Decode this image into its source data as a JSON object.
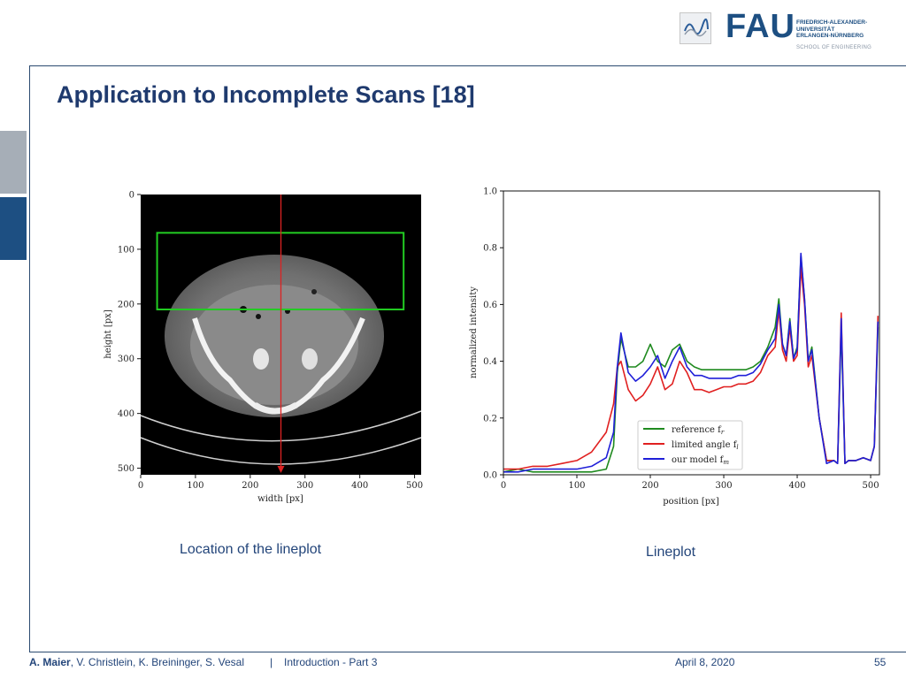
{
  "header": {
    "logo_text": "FAU",
    "university_lines": [
      "FRIEDRICH-ALEXANDER-",
      "UNIVERSITÄT",
      "ERLANGEN-NÜRNBERG"
    ],
    "school": "SCHOOL OF ENGINEERING"
  },
  "slide": {
    "title": "Application to Incomplete Scans [18]",
    "caption_left": "Location of the lineplot",
    "caption_right": "Lineplot"
  },
  "footer": {
    "author_main": "A. Maier",
    "authors_rest": ", V. Christlein, K. Breininger, S. Vesal",
    "separator": "|",
    "lecture": "Introduction - Part 3",
    "date": "April 8, 2020",
    "page": "55"
  },
  "colors": {
    "accent": "#1d4f82",
    "reference": "#1f8a1f",
    "limited": "#e02020",
    "model": "#1f1fd8",
    "box": "#22cc22",
    "line_marker": "#dd2222"
  },
  "chart_data": [
    {
      "type": "image",
      "xlabel": "width [px]",
      "ylabel": "height [px]",
      "xlim": [
        0,
        512
      ],
      "ylim": [
        512,
        0
      ],
      "xticks": [
        0,
        100,
        200,
        300,
        400,
        500
      ],
      "yticks": [
        0,
        100,
        200,
        300,
        400,
        500
      ],
      "annotations": [
        {
          "kind": "rectangle",
          "x0": 30,
          "y0": 70,
          "x1": 480,
          "y1": 210,
          "color": "green"
        },
        {
          "kind": "arrow",
          "x": 256,
          "y0": 0,
          "y1": 512,
          "color": "red"
        }
      ]
    },
    {
      "type": "line",
      "xlabel": "position [px]",
      "ylabel": "normalized intensity",
      "xlim": [
        0,
        512
      ],
      "ylim": [
        0,
        1.0
      ],
      "xticks": [
        0,
        100,
        200,
        300,
        400,
        500
      ],
      "yticks": [
        "0.0",
        "0.2",
        "0.4",
        "0.6",
        "0.8",
        "1.0"
      ],
      "legend_position": "lower-center",
      "x": [
        0,
        20,
        40,
        60,
        80,
        100,
        120,
        140,
        150,
        155,
        160,
        170,
        180,
        190,
        200,
        210,
        220,
        230,
        240,
        250,
        260,
        270,
        280,
        290,
        300,
        310,
        320,
        330,
        340,
        350,
        360,
        370,
        375,
        380,
        385,
        390,
        395,
        400,
        405,
        410,
        415,
        420,
        430,
        440,
        450,
        455,
        460,
        465,
        470,
        480,
        490,
        500,
        505,
        510
      ],
      "series": [
        {
          "name": "reference",
          "legend_label": "reference f",
          "legend_sub": "r",
          "color": "#1f8a1f",
          "values": [
            0.01,
            0.02,
            0.01,
            0.01,
            0.01,
            0.01,
            0.01,
            0.02,
            0.1,
            0.36,
            0.48,
            0.38,
            0.38,
            0.4,
            0.46,
            0.4,
            0.38,
            0.44,
            0.46,
            0.4,
            0.38,
            0.37,
            0.37,
            0.37,
            0.37,
            0.37,
            0.37,
            0.37,
            0.38,
            0.4,
            0.45,
            0.52,
            0.62,
            0.46,
            0.42,
            0.55,
            0.41,
            0.45,
            0.77,
            0.62,
            0.4,
            0.45,
            0.2,
            0.05,
            0.05,
            0.04,
            0.52,
            0.04,
            0.05,
            0.05,
            0.06,
            0.05,
            0.1,
            0.52
          ]
        },
        {
          "name": "limited angle",
          "legend_label": "limited angle f",
          "legend_sub": "l",
          "color": "#e02020",
          "values": [
            0.02,
            0.02,
            0.03,
            0.03,
            0.04,
            0.05,
            0.08,
            0.15,
            0.25,
            0.38,
            0.4,
            0.3,
            0.26,
            0.28,
            0.32,
            0.38,
            0.3,
            0.32,
            0.4,
            0.36,
            0.3,
            0.3,
            0.29,
            0.3,
            0.31,
            0.31,
            0.32,
            0.32,
            0.33,
            0.36,
            0.42,
            0.45,
            0.58,
            0.44,
            0.4,
            0.52,
            0.4,
            0.42,
            0.73,
            0.6,
            0.38,
            0.42,
            0.2,
            0.05,
            0.05,
            0.04,
            0.57,
            0.04,
            0.05,
            0.05,
            0.06,
            0.05,
            0.1,
            0.56
          ]
        },
        {
          "name": "our model",
          "legend_label": "our model f",
          "legend_sub": "m",
          "color": "#1f1fd8",
          "values": [
            0.01,
            0.01,
            0.02,
            0.02,
            0.02,
            0.02,
            0.03,
            0.06,
            0.15,
            0.38,
            0.5,
            0.36,
            0.33,
            0.35,
            0.38,
            0.42,
            0.34,
            0.4,
            0.45,
            0.38,
            0.35,
            0.35,
            0.34,
            0.34,
            0.34,
            0.34,
            0.35,
            0.35,
            0.36,
            0.39,
            0.44,
            0.48,
            0.6,
            0.46,
            0.42,
            0.54,
            0.41,
            0.44,
            0.78,
            0.62,
            0.4,
            0.44,
            0.2,
            0.04,
            0.05,
            0.04,
            0.55,
            0.04,
            0.05,
            0.05,
            0.06,
            0.05,
            0.1,
            0.54
          ]
        }
      ]
    }
  ]
}
